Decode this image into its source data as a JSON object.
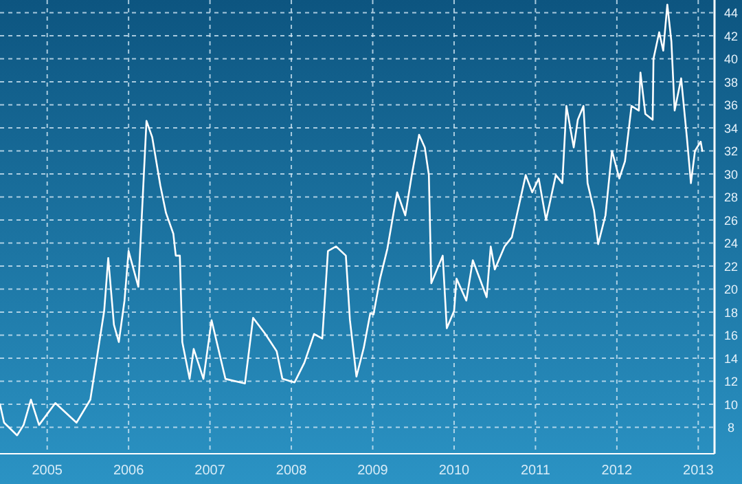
{
  "chart_data": {
    "type": "line",
    "x": [
      2004.42,
      2004.47,
      2004.63,
      2004.71,
      2004.8,
      2004.9,
      2005.1,
      2005.36,
      2005.53,
      2005.61,
      2005.7,
      2005.75,
      2005.82,
      2005.88,
      2005.95,
      2006.0,
      2006.12,
      2006.22,
      2006.29,
      2006.39,
      2006.46,
      2006.55,
      2006.58,
      2006.63,
      2006.66,
      2006.75,
      2006.8,
      2006.92,
      2007.02,
      2007.19,
      2007.43,
      2007.53,
      2007.68,
      2007.82,
      2007.89,
      2008.04,
      2008.16,
      2008.28,
      2008.38,
      2008.45,
      2008.55,
      2008.67,
      2008.72,
      2008.8,
      2008.89,
      2008.97,
      2009.01,
      2009.09,
      2009.18,
      2009.3,
      2009.4,
      2009.48,
      2009.57,
      2009.64,
      2009.69,
      2009.72,
      2009.86,
      2009.91,
      2010.0,
      2010.03,
      2010.15,
      2010.23,
      2010.4,
      2010.45,
      2010.5,
      2010.62,
      2010.71,
      2010.88,
      2010.96,
      2011.04,
      2011.13,
      2011.25,
      2011.33,
      2011.38,
      2011.47,
      2011.52,
      2011.59,
      2011.64,
      2011.72,
      2011.76,
      2011.77,
      2011.86,
      2011.94,
      2012.03,
      2012.1,
      2012.18,
      2012.27,
      2012.29,
      2012.35,
      2012.44,
      2012.45,
      2012.52,
      2012.57,
      2012.62,
      2012.67,
      2012.71,
      2012.79,
      2012.86,
      2012.91,
      2012.96,
      2013.03,
      2013.05
    ],
    "series": [
      {
        "color": "#ffffff",
        "values": [
          10.0,
          8.4,
          7.3,
          8.2,
          10.4,
          8.2,
          10.1,
          8.4,
          10.4,
          14.0,
          18.1,
          22.7,
          16.9,
          15.4,
          19.0,
          23.3,
          20.2,
          34.6,
          33.2,
          29.0,
          26.6,
          24.8,
          22.9,
          22.9,
          15.4,
          12.2,
          14.8,
          12.2,
          17.3,
          12.2,
          11.8,
          17.5,
          16.1,
          14.6,
          12.2,
          11.9,
          13.6,
          16.1,
          15.7,
          23.3,
          23.7,
          22.9,
          17.3,
          12.4,
          14.9,
          17.9,
          17.8,
          20.9,
          23.5,
          28.4,
          26.4,
          29.9,
          33.4,
          32.3,
          29.9,
          20.5,
          22.9,
          16.6,
          18.1,
          20.9,
          19.0,
          22.5,
          19.3,
          23.7,
          21.7,
          23.7,
          24.5,
          29.9,
          28.4,
          29.6,
          26.0,
          29.9,
          29.2,
          35.9,
          32.3,
          34.7,
          35.9,
          29.2,
          26.8,
          24.5,
          23.9,
          26.4,
          32.0,
          29.6,
          31.1,
          35.9,
          35.5,
          38.8,
          35.2,
          34.7,
          40.0,
          42.3,
          40.7,
          44.7,
          41.5,
          35.5,
          38.3,
          33.2,
          29.2,
          32.0,
          32.8,
          32.0
        ]
      }
    ],
    "xlim": [
      2004.42,
      2013.2
    ],
    "xticks": [
      2005,
      2006,
      2007,
      2008,
      2009,
      2010,
      2011,
      2012,
      2013
    ],
    "ylim": [
      5.7,
      45.1
    ],
    "yticks": [
      8,
      10,
      12,
      14,
      16,
      18,
      20,
      22,
      24,
      26,
      28,
      30,
      32,
      34,
      36,
      38,
      40,
      42,
      44
    ],
    "grid": true,
    "marker": "none",
    "line_style": "solid"
  }
}
